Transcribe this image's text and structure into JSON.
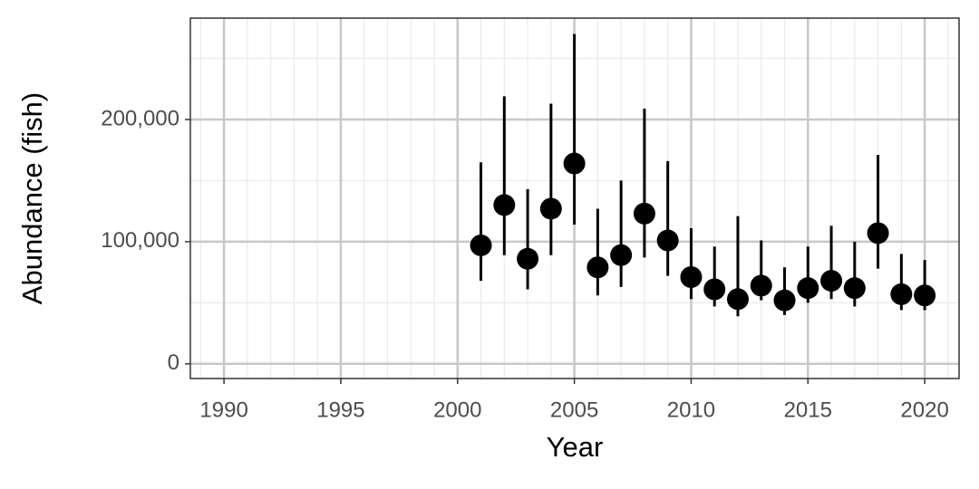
{
  "chart_data": {
    "type": "errorbar",
    "x_label": "Year",
    "y_label": "Abundance (fish)",
    "xlim": [
      1988.56,
      2021.47
    ],
    "xticks": [
      1990,
      1995,
      2000,
      2005,
      2010,
      2015,
      2020
    ],
    "ylim": [
      -12000,
      283000
    ],
    "yticks": [
      0,
      {
        "value": 100000,
        "label": "100,000"
      },
      {
        "value": 200000,
        "label": "200,000"
      }
    ],
    "grid": true,
    "series": [
      {
        "color": "#000000",
        "x": [
          2001,
          2002,
          2003,
          2004,
          2005,
          2006,
          2007,
          2008,
          2009,
          2010,
          2011,
          2012,
          2013,
          2014,
          2015,
          2016,
          2017,
          2018,
          2019,
          2020
        ],
        "values": [
          97000,
          130000,
          86000,
          127000,
          164000,
          79000,
          89000,
          123000,
          101000,
          71000,
          61000,
          53000,
          64000,
          52000,
          62000,
          68000,
          62000,
          107000,
          57000,
          56000
        ],
        "lower": [
          68000,
          89000,
          61000,
          89000,
          114000,
          56000,
          63000,
          87000,
          72000,
          53000,
          47000,
          39000,
          52000,
          40000,
          50000,
          53000,
          47000,
          78000,
          44000,
          44000
        ],
        "upper": [
          165000,
          219000,
          143000,
          213000,
          270000,
          127000,
          150000,
          209000,
          166000,
          111000,
          96000,
          121000,
          101000,
          79000,
          96000,
          113000,
          100000,
          171000,
          90000,
          85000
        ]
      }
    ]
  }
}
